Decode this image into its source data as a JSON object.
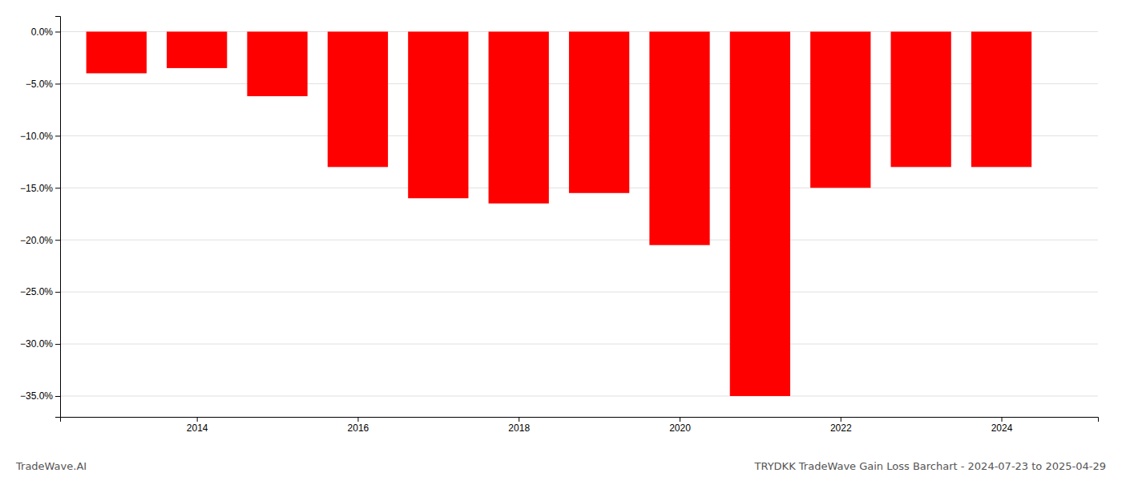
{
  "chart_data": {
    "type": "bar",
    "title": "TRYDKK TradeWave Gain Loss Barchart - 2024-07-23 to 2025-04-29",
    "annotations": [
      "TradeWave.AI"
    ],
    "x": [
      2013,
      2014,
      2015,
      2016,
      2017,
      2018,
      2019,
      2020,
      2021,
      2022,
      2023,
      2024
    ],
    "values": [
      -4.0,
      -3.5,
      -6.2,
      -13.0,
      -16.0,
      -16.5,
      -15.5,
      -20.5,
      -35.0,
      -15.0,
      -13.0,
      -13.0
    ],
    "color": "#ff0000",
    "xlim": [
      2012.3,
      2025.2
    ],
    "xticks": [
      2014,
      2016,
      2018,
      2020,
      2022,
      2024
    ],
    "ylim": [
      -37,
      1.5
    ],
    "yticks": [
      {
        "value": 0.0,
        "label": "0.0%"
      },
      {
        "value": -5.0,
        "label": "−5.0%"
      },
      {
        "value": -10.0,
        "label": "−10.0%"
      },
      {
        "value": -15.0,
        "label": "−15.0%"
      },
      {
        "value": -20.0,
        "label": "−20.0%"
      },
      {
        "value": -25.0,
        "label": "−25.0%"
      },
      {
        "value": -30.0,
        "label": "−30.0%"
      },
      {
        "value": -35.0,
        "label": "−35.0%"
      }
    ],
    "grid": true
  }
}
